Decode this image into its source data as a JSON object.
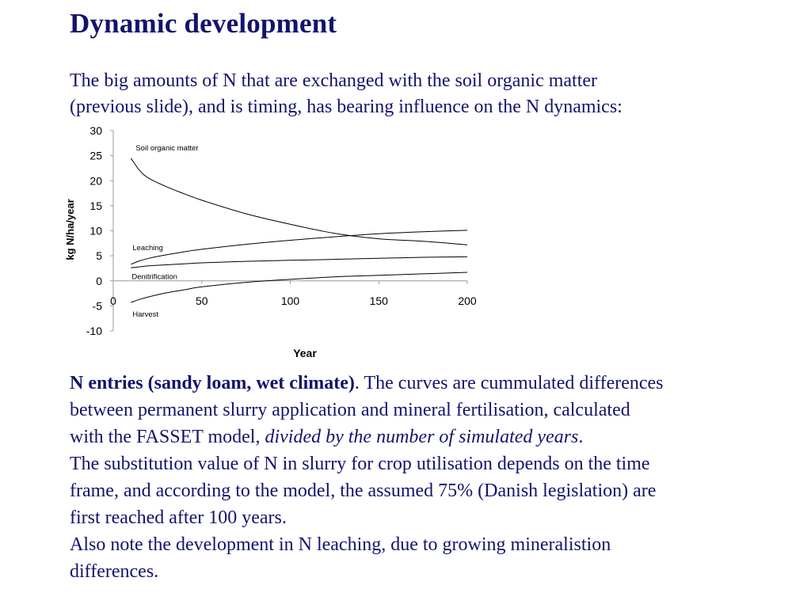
{
  "slide": {
    "title": "Dynamic development",
    "intro_line1": "The big amounts of N that are exchanged with the soil organic matter",
    "intro_line2": "(previous slide), and is timing, has bearing influence on the N dynamics:"
  },
  "body": {
    "bold_lead": "N entries (sandy loam, wet climate)",
    "p1_a": ". The curves are cummulated differences",
    "p1_b": "between permanent slurry application and mineral fertilisation, calculated",
    "p1_c": "with the FASSET model, ",
    "p1_italic": "divided by the number of simulated years",
    "p1_end": ".",
    "p2_a": "The substitution value of N in slurry for crop utilisation depends on the time",
    "p2_b": "frame, and according to the model, the assumed 75% (Danish legislation) are",
    "p2_c": "first reached after 100 years.",
    "p3_a": "Also note the development in N leaching, due to growing mineralistion",
    "p3_b": "differences."
  },
  "chart_data": {
    "type": "line",
    "title": "",
    "xlabel": "Year",
    "ylabel": "kg N/ha/year",
    "xlim": [
      0,
      200
    ],
    "ylim": [
      -10,
      30
    ],
    "xticks": [
      0,
      50,
      100,
      150,
      200
    ],
    "yticks": [
      -10,
      -5,
      0,
      5,
      10,
      15,
      20,
      25,
      30
    ],
    "grid": false,
    "legend": "none",
    "line_color": "#000000",
    "series": [
      {
        "name": "Soil organic matter",
        "x": [
          10,
          15,
          20,
          30,
          40,
          50,
          75,
          100,
          125,
          150,
          175,
          200
        ],
        "y": [
          24.5,
          22.0,
          20.5,
          18.8,
          17.4,
          16.1,
          13.4,
          11.3,
          9.5,
          8.4,
          7.9,
          7.2
        ]
      },
      {
        "name": "Leaching",
        "x": [
          10,
          15,
          20,
          30,
          40,
          50,
          75,
          100,
          125,
          150,
          175,
          200
        ],
        "y": [
          3.3,
          4.0,
          4.5,
          5.2,
          5.8,
          6.3,
          7.3,
          8.1,
          8.8,
          9.4,
          9.8,
          10.1
        ]
      },
      {
        "name": "Denitrification",
        "x": [
          10,
          15,
          20,
          30,
          40,
          50,
          75,
          100,
          125,
          150,
          175,
          200
        ],
        "y": [
          2.6,
          2.8,
          3.0,
          3.2,
          3.4,
          3.6,
          3.9,
          4.1,
          4.3,
          4.5,
          4.7,
          4.8
        ]
      },
      {
        "name": "Harvest",
        "x": [
          10,
          15,
          20,
          30,
          40,
          50,
          75,
          100,
          125,
          150,
          175,
          200
        ],
        "y": [
          -4.3,
          -3.7,
          -3.2,
          -2.4,
          -1.8,
          -1.2,
          -0.3,
          0.3,
          0.8,
          1.1,
          1.4,
          1.7
        ]
      }
    ]
  }
}
